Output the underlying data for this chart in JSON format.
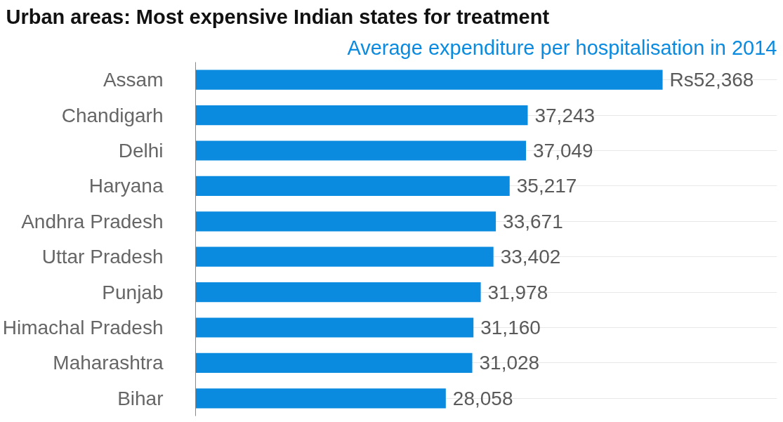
{
  "chart_data": {
    "type": "bar",
    "orientation": "horizontal",
    "title": "Urban areas: Most expensive Indian states for treatment",
    "subtitle": "Average expenditure per hospitalisation in 2014",
    "categories": [
      "Assam",
      "Chandigarh",
      "Delhi",
      "Haryana",
      "Andhra Pradesh",
      "Uttar Pradesh",
      "Punjab",
      "Himachal Pradesh",
      "Maharashtra",
      "Bihar"
    ],
    "values": [
      52368,
      37243,
      37049,
      35217,
      33671,
      33402,
      31978,
      31160,
      31028,
      28058
    ],
    "value_labels": [
      "Rs52,368",
      "37,243",
      "37,049",
      "35,217",
      "33,671",
      "33,402",
      "31,978",
      "31,160",
      "31,028",
      "28,058"
    ],
    "color": "#0a8be0",
    "grid": "y"
  }
}
